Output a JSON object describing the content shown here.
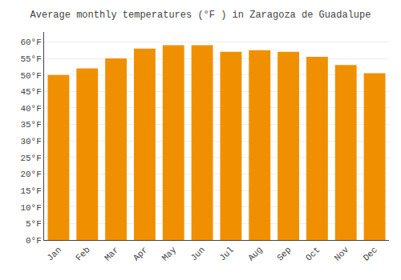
{
  "chart_data": {
    "type": "bar",
    "title": "Average monthly temperatures (°F ) in Zaragoza de Guadalupe",
    "categories": [
      "Jan",
      "Feb",
      "Mar",
      "Apr",
      "May",
      "Jun",
      "Jul",
      "Aug",
      "Sep",
      "Oct",
      "Nov",
      "Dec"
    ],
    "values": [
      50,
      52,
      55,
      58,
      59,
      59,
      57,
      57.5,
      57,
      55.5,
      53,
      50.5
    ],
    "color": "#F09000",
    "ylim": [
      0,
      63
    ],
    "yticks": [
      {
        "value": 0,
        "label": "0°F"
      },
      {
        "value": 5,
        "label": "5°F"
      },
      {
        "value": 10,
        "label": "10°F"
      },
      {
        "value": 15,
        "label": "15°F"
      },
      {
        "value": 20,
        "label": "20°F"
      },
      {
        "value": 25,
        "label": "25°F"
      },
      {
        "value": 30,
        "label": "30°F"
      },
      {
        "value": 35,
        "label": "35°F"
      },
      {
        "value": 40,
        "label": "40°F"
      },
      {
        "value": 45,
        "label": "45°F"
      },
      {
        "value": 50,
        "label": "50°F"
      },
      {
        "value": 55,
        "label": "55°F"
      },
      {
        "value": 60,
        "label": "60°F"
      }
    ],
    "grid": true
  }
}
